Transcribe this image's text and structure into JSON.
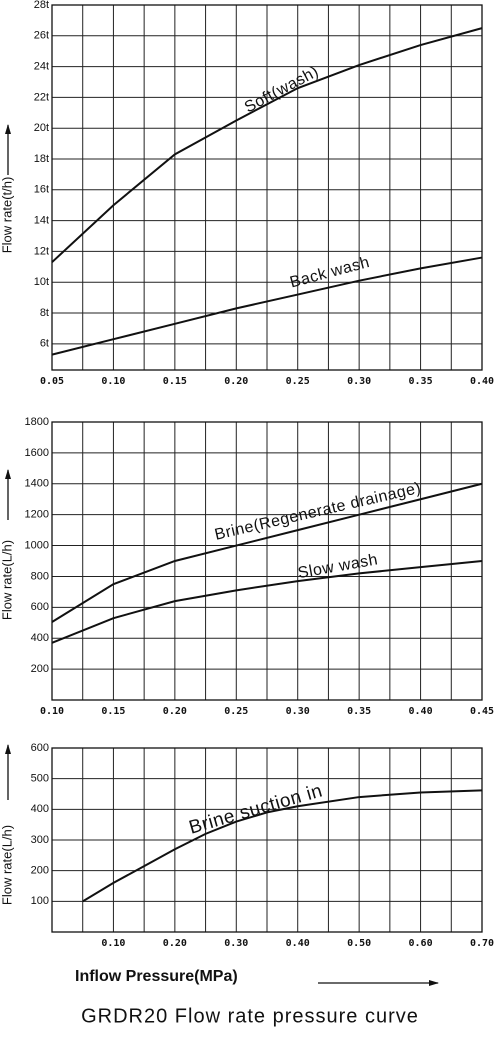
{
  "title": "GRDR20 Flow rate pressure curve",
  "xlabel": "Inflow Pressure(MPa)",
  "chart_data": [
    {
      "type": "line",
      "ylabel": "Flow rate(t/h)",
      "xlim": [
        0.05,
        0.4
      ],
      "ylim": [
        4.3,
        28
      ],
      "xticks": [
        0.05,
        {
          "value": 0.1,
          "label": "0.10"
        },
        0.15,
        {
          "value": 0.2,
          "label": "0.20"
        },
        0.25,
        {
          "value": 0.3,
          "label": "0.30"
        },
        0.35,
        {
          "value": 0.4,
          "label": "0.40"
        }
      ],
      "xgrid": [
        0.075,
        0.125,
        0.175,
        0.225,
        0.275,
        0.325,
        0.375
      ],
      "yticks": [
        {
          "value": 6,
          "label": "6t"
        },
        {
          "value": 8,
          "label": "8t"
        },
        {
          "value": 10,
          "label": "10t"
        },
        {
          "value": 12,
          "label": "12t"
        },
        {
          "value": 14,
          "label": "14t"
        },
        {
          "value": 16,
          "label": "16t"
        },
        {
          "value": 18,
          "label": "18t"
        },
        {
          "value": 20,
          "label": "20t"
        },
        {
          "value": 22,
          "label": "22t"
        },
        {
          "value": 24,
          "label": "24t"
        },
        {
          "value": 26,
          "label": "26t"
        },
        {
          "value": 28,
          "label": "28t"
        }
      ],
      "grid": true,
      "x": [
        0.05,
        0.1,
        0.15,
        0.2,
        0.25,
        0.3,
        0.35,
        0.4
      ],
      "series": [
        {
          "name": "Soft(wash)",
          "color": "#111111",
          "values": [
            11.3,
            15.0,
            18.3,
            20.5,
            22.6,
            24.1,
            25.4,
            26.5
          ]
        },
        {
          "name": "Back wash",
          "color": "#111111",
          "values": [
            5.3,
            6.3,
            7.3,
            8.3,
            9.2,
            10.1,
            10.9,
            11.6
          ]
        }
      ]
    },
    {
      "type": "line",
      "ylabel": "Flow rate(L/h)",
      "xlim": [
        0.1,
        0.45
      ],
      "ylim": [
        0,
        1800
      ],
      "xticks": [
        {
          "value": 0.1,
          "label": "0.10"
        },
        0.15,
        {
          "value": 0.2,
          "label": "0.20"
        },
        0.25,
        {
          "value": 0.3,
          "label": "0.30"
        },
        0.35,
        {
          "value": 0.4,
          "label": "0.40"
        },
        0.45
      ],
      "xgrid": [
        0.125,
        0.175,
        0.225,
        0.275,
        0.325,
        0.375,
        0.425
      ],
      "yticks": [
        200,
        400,
        600,
        800,
        1000,
        1200,
        1400,
        1600,
        1800
      ],
      "grid": true,
      "x": [
        0.1,
        0.15,
        0.2,
        0.25,
        0.3,
        0.35,
        0.4,
        0.45
      ],
      "series": [
        {
          "name": "Brine(Regenerate drainage)",
          "color": "#111111",
          "values": [
            505,
            750,
            900,
            1000,
            1100,
            1200,
            1300,
            1400
          ]
        },
        {
          "name": "Slow wash",
          "color": "#111111",
          "values": [
            370,
            530,
            640,
            710,
            770,
            820,
            860,
            900
          ]
        }
      ]
    },
    {
      "type": "line",
      "ylabel": "Flow rate(L/h)",
      "xlim": [
        0,
        0.7
      ],
      "ylim": [
        0,
        600
      ],
      "xticks": [
        {
          "value": 0.1,
          "label": "0.10"
        },
        {
          "value": 0.2,
          "label": "0.20"
        },
        {
          "value": 0.3,
          "label": "0.30"
        },
        {
          "value": 0.4,
          "label": "0.40"
        },
        {
          "value": 0.5,
          "label": "0.50"
        },
        {
          "value": 0.6,
          "label": "0.60"
        },
        {
          "value": 0.7,
          "label": "0.70"
        }
      ],
      "xgrid": [
        0.05,
        0.15,
        0.25,
        0.35,
        0.45,
        0.55,
        0.65
      ],
      "yticks": [
        100,
        200,
        300,
        400,
        500,
        600
      ],
      "grid": true,
      "x": [
        0.05,
        0.1,
        0.15,
        0.2,
        0.25,
        0.3,
        0.35,
        0.4,
        0.5,
        0.6,
        0.7
      ],
      "series": [
        {
          "name": "Brine suction in",
          "color": "#111111",
          "values": [
            100,
            160,
            215,
            270,
            320,
            360,
            390,
            410,
            440,
            455,
            462
          ]
        }
      ]
    }
  ]
}
